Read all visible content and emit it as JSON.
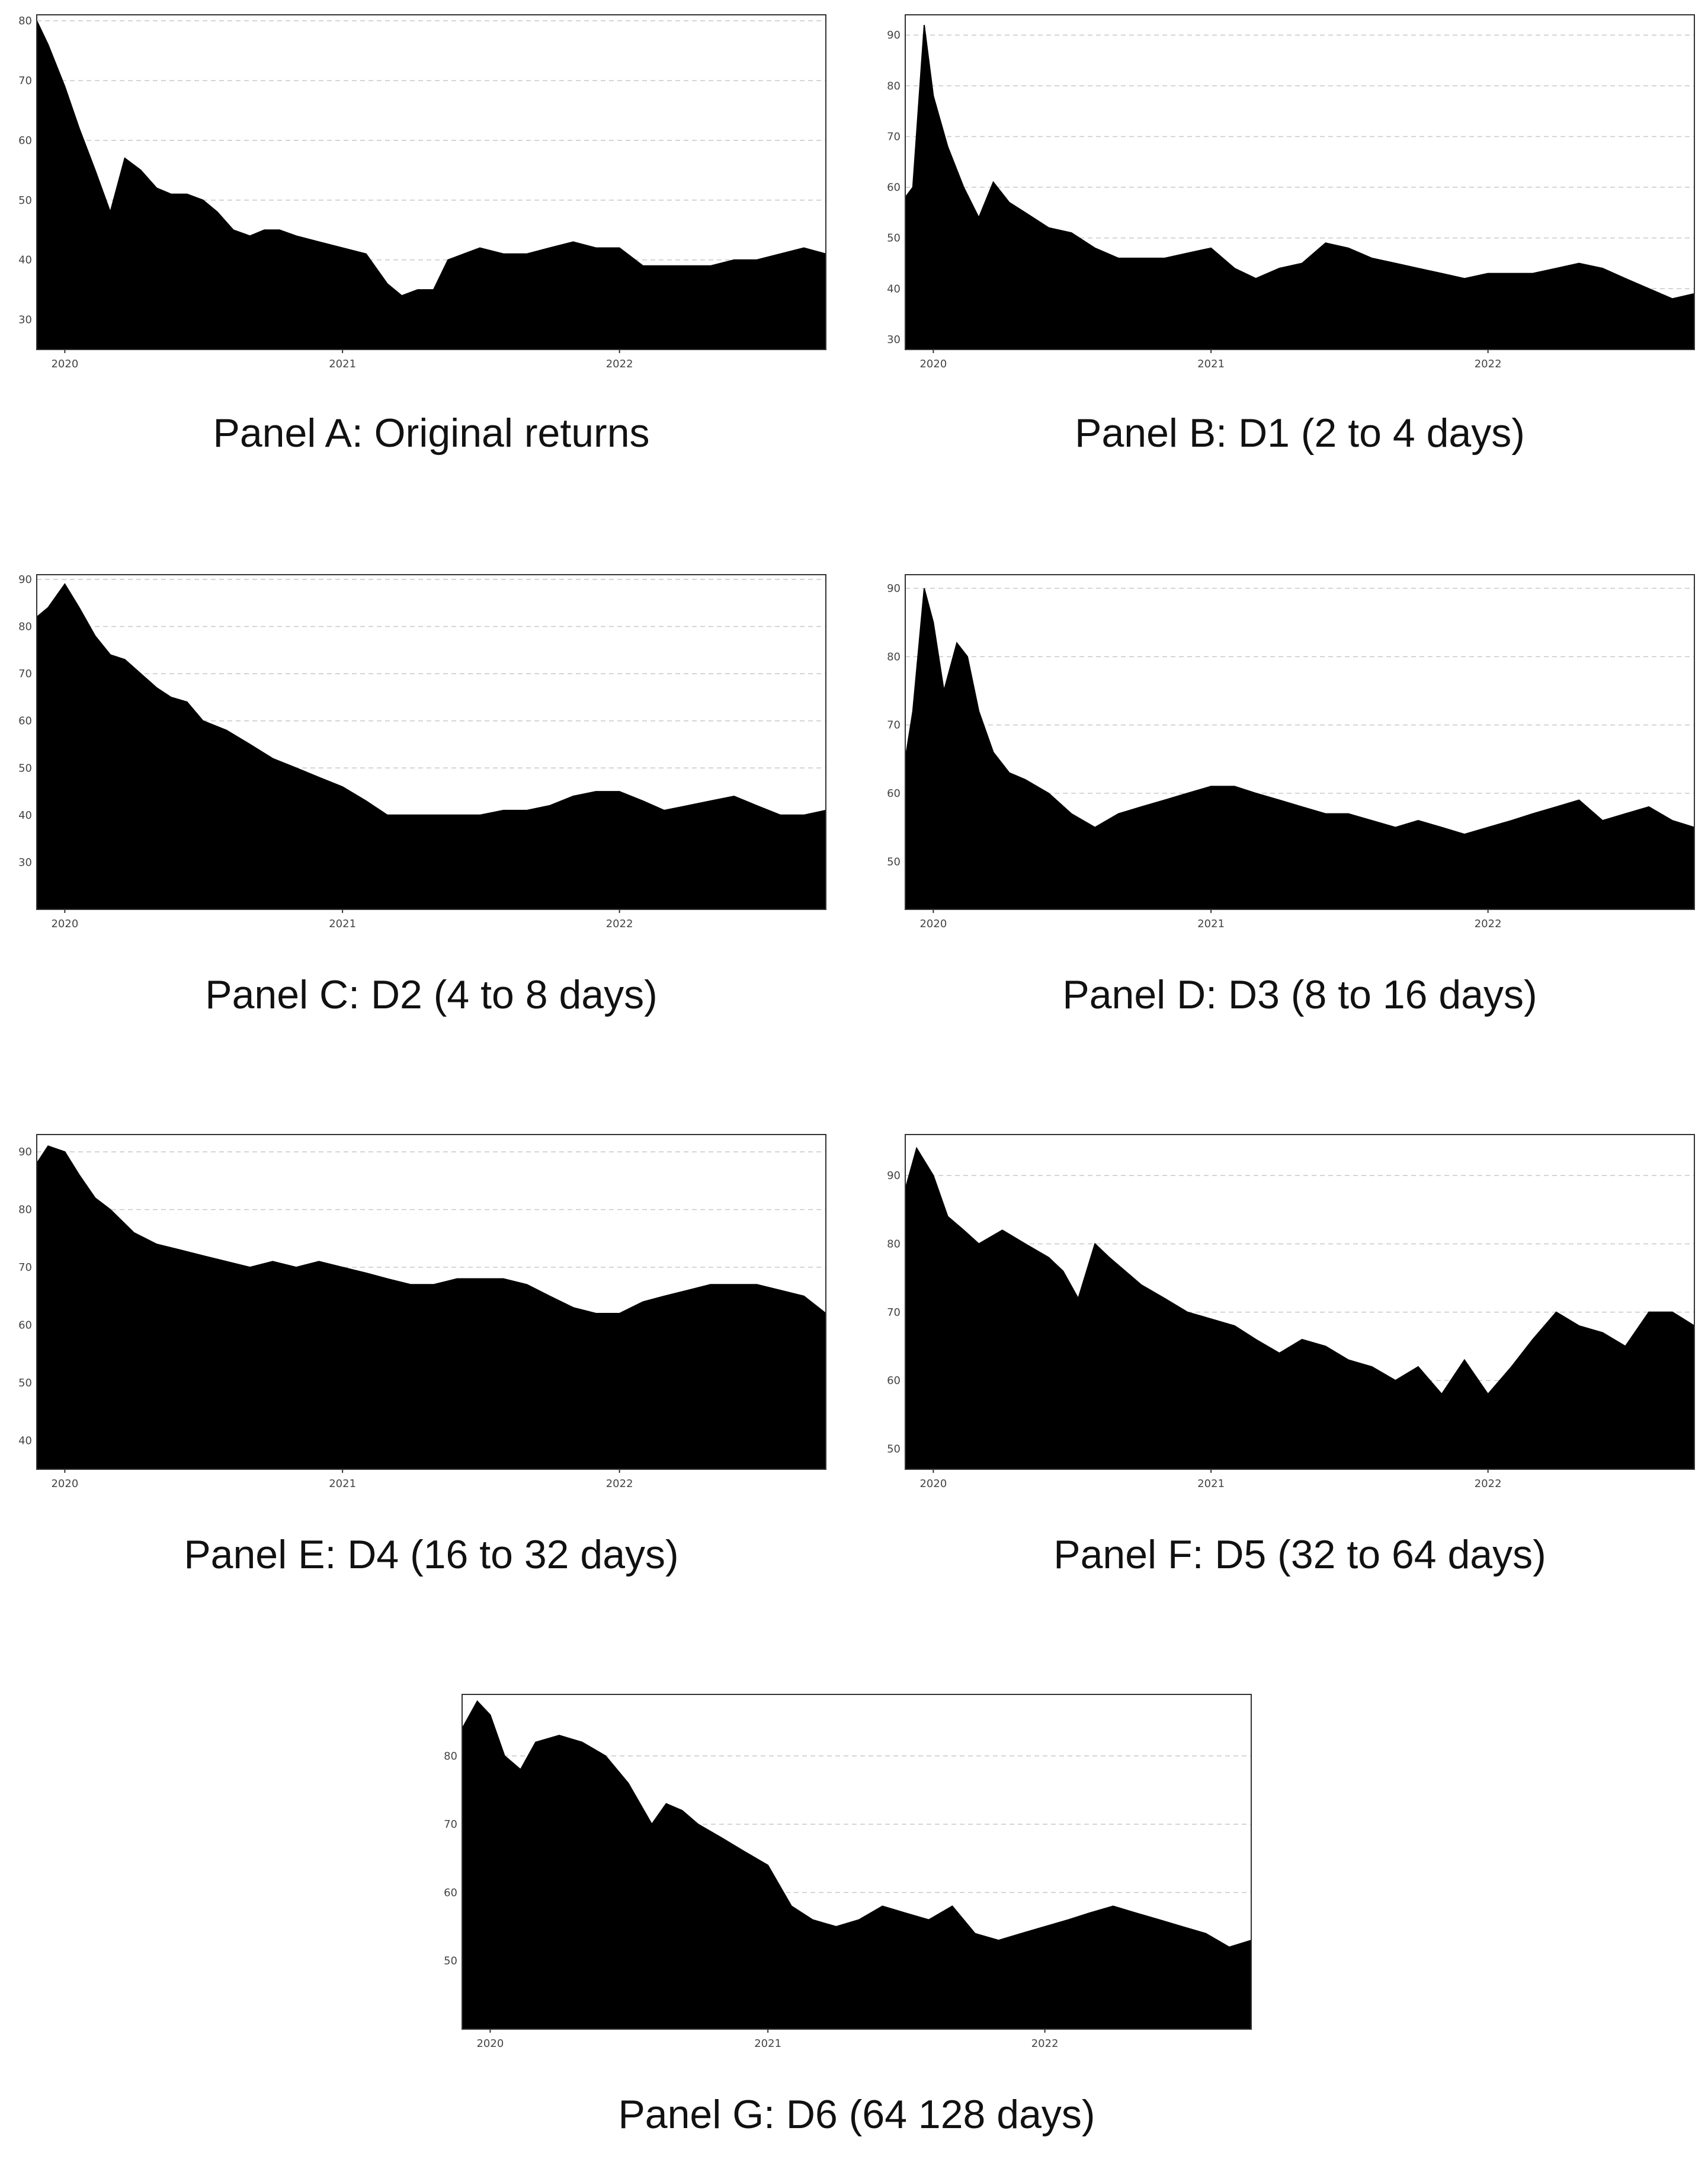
{
  "chart_data": [
    {
      "type": "area",
      "caption": "Panel A: Original returns",
      "x_ticks": [
        "2020",
        "2021",
        "2022"
      ],
      "y_ticks": [
        30,
        40,
        50,
        60,
        70,
        80
      ],
      "ylim": [
        25,
        81
      ],
      "xlim": [
        "2019-11-25",
        "2022-09-30"
      ],
      "grid": "horizontal-dashed",
      "fill_color": "#000000",
      "series": [
        {
          "x": [
            "2019-11-25",
            "2019-12-10",
            "2020-01-01",
            "2020-01-20",
            "2020-02-10",
            "2020-03-01",
            "2020-03-20",
            "2020-04-10",
            "2020-05-01",
            "2020-05-20",
            "2020-06-10",
            "2020-07-01",
            "2020-07-20",
            "2020-08-10",
            "2020-09-01",
            "2020-09-20",
            "2020-10-10",
            "2020-11-01",
            "2020-12-01",
            "2021-01-01",
            "2021-02-01",
            "2021-03-01",
            "2021-03-20",
            "2021-04-10",
            "2021-05-01",
            "2021-05-20",
            "2021-06-10",
            "2021-07-01",
            "2021-08-01",
            "2021-09-01",
            "2021-10-01",
            "2021-11-01",
            "2021-12-01",
            "2022-01-01",
            "2022-02-01",
            "2022-03-01",
            "2022-04-01",
            "2022-05-01",
            "2022-06-01",
            "2022-07-01",
            "2022-08-01",
            "2022-09-01",
            "2022-09-30"
          ],
          "y": [
            80,
            76,
            69,
            62,
            55,
            48,
            57,
            55,
            52,
            51,
            51,
            50,
            48,
            45,
            44,
            45,
            45,
            44,
            43,
            42,
            41,
            36,
            34,
            35,
            35,
            40,
            41,
            42,
            41,
            41,
            42,
            43,
            42,
            42,
            39,
            39,
            39,
            39,
            40,
            40,
            41,
            42,
            41
          ]
        }
      ]
    },
    {
      "type": "area",
      "caption": "Panel B: D1 (2 to 4 days)",
      "x_ticks": [
        "2020",
        "2021",
        "2022"
      ],
      "y_ticks": [
        30,
        40,
        50,
        60,
        70,
        80,
        90
      ],
      "ylim": [
        28,
        94
      ],
      "xlim": [
        "2019-11-25",
        "2022-09-30"
      ],
      "grid": "horizontal-dashed",
      "fill_color": "#000000",
      "series": [
        {
          "x": [
            "2019-11-25",
            "2019-12-05",
            "2019-12-20",
            "2020-01-01",
            "2020-01-20",
            "2020-02-10",
            "2020-03-01",
            "2020-03-20",
            "2020-04-10",
            "2020-05-01",
            "2020-06-01",
            "2020-07-01",
            "2020-08-01",
            "2020-09-01",
            "2020-10-01",
            "2020-11-01",
            "2020-12-01",
            "2021-01-01",
            "2021-02-01",
            "2021-03-01",
            "2021-04-01",
            "2021-05-01",
            "2021-06-01",
            "2021-07-01",
            "2021-08-01",
            "2021-09-01",
            "2021-10-01",
            "2021-11-01",
            "2021-12-01",
            "2022-01-01",
            "2022-02-01",
            "2022-03-01",
            "2022-04-01",
            "2022-05-01",
            "2022-06-01",
            "2022-07-01",
            "2022-08-01",
            "2022-09-01",
            "2022-09-30"
          ],
          "y": [
            58,
            60,
            92,
            78,
            68,
            60,
            54,
            61,
            57,
            55,
            52,
            51,
            48,
            46,
            46,
            46,
            47,
            48,
            44,
            42,
            44,
            45,
            49,
            48,
            46,
            45,
            44,
            43,
            42,
            43,
            43,
            43,
            44,
            45,
            44,
            42,
            40,
            38,
            39
          ]
        }
      ]
    },
    {
      "type": "area",
      "caption": "Panel C: D2 (4 to 8 days)",
      "x_ticks": [
        "2020",
        "2021",
        "2022"
      ],
      "y_ticks": [
        30,
        40,
        50,
        60,
        70,
        80,
        90
      ],
      "ylim": [
        20,
        91
      ],
      "xlim": [
        "2019-11-25",
        "2022-09-30"
      ],
      "grid": "horizontal-dashed",
      "fill_color": "#000000",
      "series": [
        {
          "x": [
            "2019-11-25",
            "2019-12-10",
            "2020-01-01",
            "2020-01-20",
            "2020-02-10",
            "2020-03-01",
            "2020-03-20",
            "2020-04-10",
            "2020-05-01",
            "2020-05-20",
            "2020-06-10",
            "2020-07-01",
            "2020-08-01",
            "2020-09-01",
            "2020-10-01",
            "2020-11-01",
            "2020-12-01",
            "2021-01-01",
            "2021-02-01",
            "2021-03-01",
            "2021-04-01",
            "2021-05-01",
            "2021-06-01",
            "2021-07-01",
            "2021-08-01",
            "2021-09-01",
            "2021-10-01",
            "2021-11-01",
            "2021-12-01",
            "2022-01-01",
            "2022-02-01",
            "2022-03-01",
            "2022-04-01",
            "2022-05-01",
            "2022-06-01",
            "2022-07-01",
            "2022-08-01",
            "2022-09-01",
            "2022-09-30"
          ],
          "y": [
            82,
            84,
            89,
            84,
            78,
            74,
            73,
            70,
            67,
            65,
            64,
            60,
            58,
            55,
            52,
            50,
            48,
            46,
            43,
            40,
            40,
            40,
            40,
            40,
            41,
            41,
            42,
            44,
            45,
            45,
            43,
            41,
            42,
            43,
            44,
            42,
            40,
            40,
            41
          ]
        }
      ]
    },
    {
      "type": "area",
      "caption": "Panel D: D3 (8 to 16 days)",
      "x_ticks": [
        "2020",
        "2021",
        "2022"
      ],
      "y_ticks": [
        50,
        60,
        70,
        80,
        90
      ],
      "ylim": [
        43,
        92
      ],
      "xlim": [
        "2019-11-25",
        "2022-09-30"
      ],
      "grid": "horizontal-dashed",
      "fill_color": "#000000",
      "series": [
        {
          "x": [
            "2019-11-25",
            "2019-12-05",
            "2019-12-20",
            "2020-01-01",
            "2020-01-15",
            "2020-02-01",
            "2020-02-15",
            "2020-03-01",
            "2020-03-20",
            "2020-04-10",
            "2020-05-01",
            "2020-06-01",
            "2020-07-01",
            "2020-08-01",
            "2020-09-01",
            "2020-10-01",
            "2020-11-01",
            "2020-12-01",
            "2021-01-01",
            "2021-02-01",
            "2021-03-01",
            "2021-04-01",
            "2021-05-01",
            "2021-06-01",
            "2021-07-01",
            "2021-08-01",
            "2021-09-01",
            "2021-10-01",
            "2021-11-01",
            "2021-12-01",
            "2022-01-01",
            "2022-02-01",
            "2022-03-01",
            "2022-04-01",
            "2022-05-01",
            "2022-06-01",
            "2022-07-01",
            "2022-08-01",
            "2022-09-01",
            "2022-09-30"
          ],
          "y": [
            65,
            72,
            90,
            85,
            75,
            82,
            80,
            72,
            66,
            63,
            62,
            60,
            57,
            55,
            57,
            58,
            59,
            60,
            61,
            61,
            60,
            59,
            58,
            57,
            57,
            56,
            55,
            56,
            55,
            54,
            55,
            56,
            57,
            58,
            59,
            56,
            57,
            58,
            56,
            55
          ]
        }
      ]
    },
    {
      "type": "area",
      "caption": "Panel E: D4 (16 to 32 days)",
      "x_ticks": [
        "2020",
        "2021",
        "2022"
      ],
      "y_ticks": [
        40,
        50,
        60,
        70,
        80,
        90
      ],
      "ylim": [
        35,
        93
      ],
      "xlim": [
        "2019-11-25",
        "2022-09-30"
      ],
      "grid": "horizontal-dashed",
      "fill_color": "#000000",
      "series": [
        {
          "x": [
            "2019-11-25",
            "2019-12-10",
            "2020-01-01",
            "2020-01-20",
            "2020-02-10",
            "2020-03-01",
            "2020-04-01",
            "2020-05-01",
            "2020-06-01",
            "2020-07-01",
            "2020-08-01",
            "2020-09-01",
            "2020-10-01",
            "2020-11-01",
            "2020-12-01",
            "2021-01-01",
            "2021-02-01",
            "2021-03-01",
            "2021-04-01",
            "2021-05-01",
            "2021-06-01",
            "2021-07-01",
            "2021-08-01",
            "2021-09-01",
            "2021-10-01",
            "2021-11-01",
            "2021-12-01",
            "2022-01-01",
            "2022-02-01",
            "2022-03-01",
            "2022-04-01",
            "2022-05-01",
            "2022-06-01",
            "2022-07-01",
            "2022-08-01",
            "2022-09-01",
            "2022-09-30"
          ],
          "y": [
            88,
            91,
            90,
            86,
            82,
            80,
            76,
            74,
            73,
            72,
            71,
            70,
            71,
            70,
            71,
            70,
            69,
            68,
            67,
            67,
            68,
            68,
            68,
            67,
            65,
            63,
            62,
            62,
            64,
            65,
            66,
            67,
            67,
            67,
            66,
            65,
            62
          ]
        }
      ]
    },
    {
      "type": "area",
      "caption": "Panel F: D5 (32 to 64 days)",
      "x_ticks": [
        "2020",
        "2021",
        "2022"
      ],
      "y_ticks": [
        50,
        60,
        70,
        80,
        90
      ],
      "ylim": [
        47,
        96
      ],
      "xlim": [
        "2019-11-25",
        "2022-09-30"
      ],
      "grid": "horizontal-dashed",
      "fill_color": "#000000",
      "series": [
        {
          "x": [
            "2019-11-25",
            "2019-12-10",
            "2020-01-01",
            "2020-01-20",
            "2020-02-10",
            "2020-03-01",
            "2020-04-01",
            "2020-05-01",
            "2020-06-01",
            "2020-06-20",
            "2020-07-10",
            "2020-08-01",
            "2020-08-20",
            "2020-09-10",
            "2020-10-01",
            "2020-11-01",
            "2020-12-01",
            "2021-01-01",
            "2021-02-01",
            "2021-03-01",
            "2021-04-01",
            "2021-05-01",
            "2021-06-01",
            "2021-07-01",
            "2021-08-01",
            "2021-09-01",
            "2021-10-01",
            "2021-11-01",
            "2021-12-01",
            "2022-01-01",
            "2022-02-01",
            "2022-03-01",
            "2022-04-01",
            "2022-05-01",
            "2022-06-01",
            "2022-07-01",
            "2022-08-01",
            "2022-09-01",
            "2022-09-30"
          ],
          "y": [
            88,
            94,
            90,
            84,
            82,
            80,
            82,
            80,
            78,
            76,
            72,
            80,
            78,
            76,
            74,
            72,
            70,
            69,
            68,
            66,
            64,
            66,
            65,
            63,
            62,
            60,
            62,
            58,
            63,
            58,
            62,
            66,
            70,
            68,
            67,
            65,
            70,
            70,
            68
          ]
        }
      ]
    },
    {
      "type": "area",
      "caption": "Panel G: D6 (64 128 days)",
      "x_ticks": [
        "2020",
        "2021",
        "2022"
      ],
      "y_ticks": [
        50,
        60,
        70,
        80
      ],
      "ylim": [
        40,
        89
      ],
      "xlim": [
        "2019-11-25",
        "2022-09-30"
      ],
      "grid": "horizontal-dashed",
      "fill_color": "#000000",
      "series": [
        {
          "x": [
            "2019-11-25",
            "2019-12-15",
            "2020-01-01",
            "2020-01-20",
            "2020-02-10",
            "2020-03-01",
            "2020-04-01",
            "2020-05-01",
            "2020-06-01",
            "2020-07-01",
            "2020-08-01",
            "2020-08-20",
            "2020-09-10",
            "2020-10-01",
            "2020-11-01",
            "2020-12-01",
            "2021-01-01",
            "2021-02-01",
            "2021-03-01",
            "2021-04-01",
            "2021-05-01",
            "2021-06-01",
            "2021-07-01",
            "2021-08-01",
            "2021-09-01",
            "2021-10-01",
            "2021-11-01",
            "2021-12-01",
            "2022-01-01",
            "2022-02-01",
            "2022-03-01",
            "2022-04-01",
            "2022-05-01",
            "2022-06-01",
            "2022-07-01",
            "2022-08-01",
            "2022-09-01",
            "2022-09-30"
          ],
          "y": [
            84,
            88,
            86,
            80,
            78,
            82,
            83,
            82,
            80,
            76,
            70,
            73,
            72,
            70,
            68,
            66,
            64,
            58,
            56,
            55,
            56,
            58,
            57,
            56,
            58,
            54,
            53,
            54,
            55,
            56,
            57,
            58,
            57,
            56,
            55,
            54,
            52,
            53
          ]
        }
      ]
    }
  ]
}
